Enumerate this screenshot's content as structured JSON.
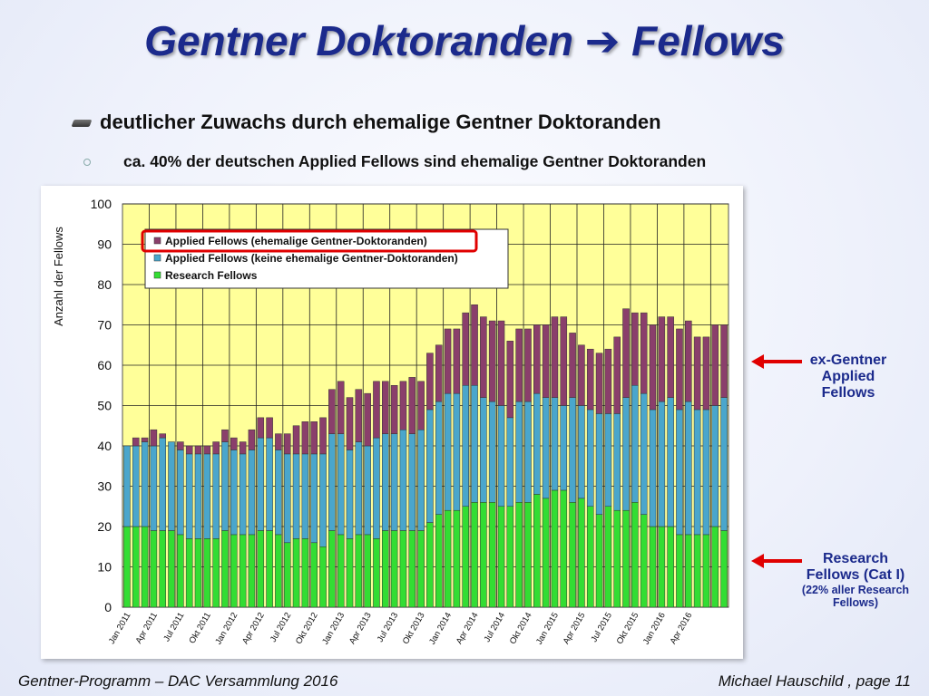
{
  "slide": {
    "title": "Gentner Doktoranden  Fellows",
    "title_part1": "Gentner Doktoranden",
    "title_arrow": "➔",
    "title_part2": "Fellows",
    "bullet1": "deutlicher Zuwachs durch ehemalige Gentner Doktoranden",
    "bullet2": "ca. 40% der deutschen Applied Fellows sind ehemalige Gentner Doktoranden",
    "footer_left": "Gentner-Programm – DAC Versammlung 2016",
    "footer_right": "Michael Hauschild ,  page 11"
  },
  "annotations": {
    "ex_gentner": [
      "ex-Gentner",
      "Applied",
      "Fellows"
    ],
    "research": [
      "Research",
      "Fellows (Cat I)"
    ],
    "research_sub": [
      "(22% aller Research",
      "Fellows)"
    ],
    "arrow_color": "#e00000"
  },
  "chart_data": {
    "type": "bar",
    "stacked": true,
    "ylabel": "Anzahl der Fellows",
    "ylim": [
      0,
      100
    ],
    "yticks": [
      0,
      10,
      20,
      30,
      40,
      50,
      60,
      70,
      80,
      90,
      100
    ],
    "grid": true,
    "legend_position": "top-left",
    "plot_background": "#ffff99",
    "x_tick_labels": [
      "Jan 2011",
      "Apr 2011",
      "Jul 2011",
      "Okt 2011",
      "Jan 2012",
      "Apr 2012",
      "Jul 2012",
      "Okt 2012",
      "Jan 2013",
      "Apr 2013",
      "Jul 2013",
      "Okt 2013",
      "Jan 2014",
      "Apr 2014",
      "Jul 2014",
      "Okt 2014",
      "Jan 2015",
      "Apr 2015",
      "Jul 2015",
      "Okt 2015",
      "Jan 2016",
      "Apr 2016"
    ],
    "x_tick_every": 3,
    "series": [
      {
        "name": "Research Fellows",
        "color": "#33dd33",
        "values": [
          20,
          20,
          20,
          19,
          19,
          19,
          18,
          17,
          17,
          17,
          17,
          19,
          18,
          18,
          18,
          19,
          19,
          18,
          16,
          17,
          17,
          16,
          15,
          19,
          18,
          17,
          18,
          18,
          17,
          19,
          19,
          19,
          19,
          19,
          21,
          23,
          24,
          24,
          25,
          26,
          26,
          26,
          25,
          25,
          26,
          26,
          28,
          27,
          29,
          29,
          26,
          27,
          25,
          23,
          25,
          24,
          24,
          26,
          23,
          20,
          20,
          20,
          18,
          18,
          18,
          18,
          20,
          19
        ]
      },
      {
        "name": "Applied Fellows (keine ehemalige Gentner-Doktoranden)",
        "color": "#4aa6cc",
        "values": [
          20,
          20,
          21,
          21,
          23,
          22,
          21,
          21,
          21,
          21,
          21,
          22,
          21,
          20,
          21,
          23,
          23,
          21,
          22,
          21,
          21,
          22,
          23,
          24,
          25,
          22,
          23,
          22,
          25,
          24,
          24,
          25,
          24,
          25,
          28,
          28,
          29,
          29,
          30,
          29,
          26,
          25,
          25,
          22,
          25,
          25,
          25,
          25,
          23,
          21,
          26,
          23,
          24,
          25,
          23,
          24,
          28,
          29,
          30,
          29,
          31,
          32,
          31,
          33,
          31,
          31,
          30,
          33
        ]
      },
      {
        "name": "Applied Fellows (ehemalige Gentner-Doktoranden)",
        "color": "#8a3f6b",
        "values": [
          0,
          2,
          1,
          4,
          1,
          0,
          2,
          2,
          2,
          2,
          3,
          3,
          3,
          3,
          5,
          5,
          5,
          4,
          5,
          7,
          8,
          8,
          9,
          11,
          13,
          13,
          13,
          13,
          14,
          13,
          12,
          12,
          14,
          12,
          14,
          14,
          16,
          16,
          18,
          20,
          20,
          20,
          21,
          19,
          18,
          18,
          17,
          18,
          20,
          22,
          16,
          15,
          15,
          15,
          16,
          19,
          22,
          18,
          20,
          21,
          21,
          20,
          20,
          20,
          18,
          18,
          20,
          18
        ]
      }
    ],
    "legend_order": [
      "Applied Fellows (ehemalige Gentner-Doktoranden)",
      "Applied Fellows (keine ehemalige Gentner-Doktoranden)",
      "Research Fellows"
    ],
    "highlight_legend_entry": "Applied Fellows (ehemalige Gentner-Doktoranden)",
    "highlight_color": "#e00000"
  }
}
